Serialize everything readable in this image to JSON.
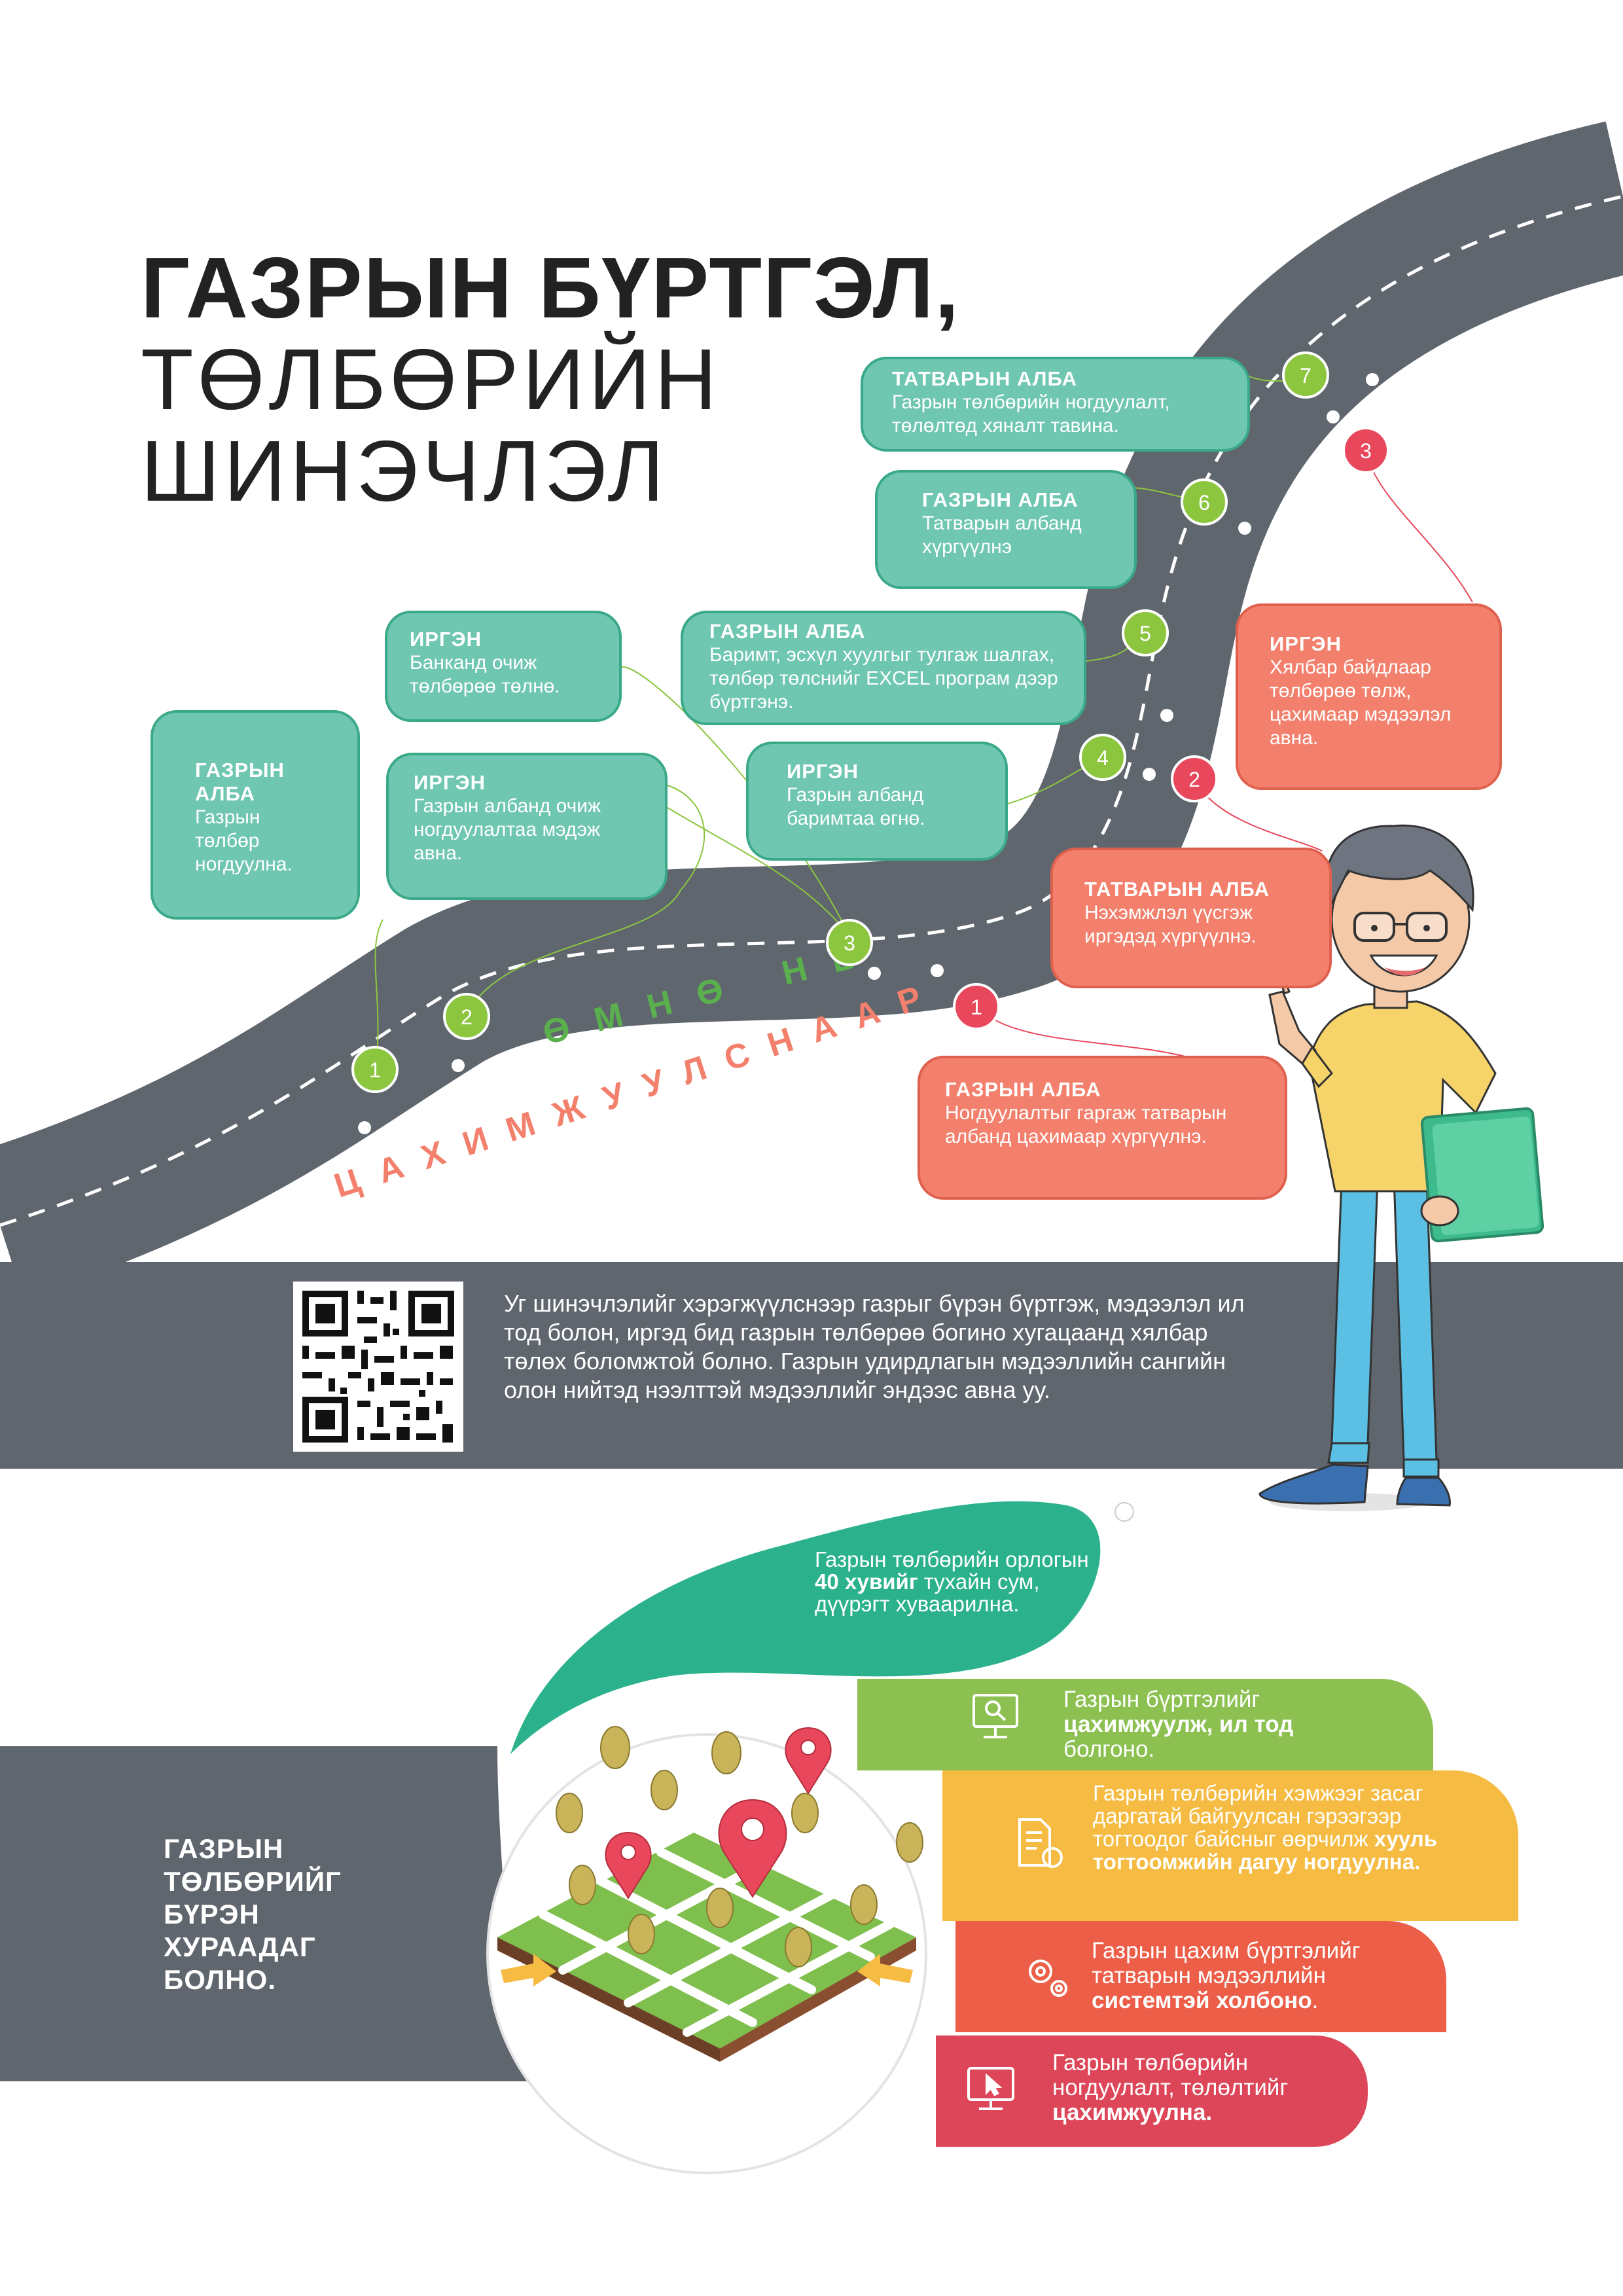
{
  "title": {
    "line1": "ГАЗРЫН БҮРТГЭЛ,",
    "line2": "ТӨЛБӨРИЙН",
    "line3": "ШИНЭЧЛЭЛ"
  },
  "road": {
    "before_label": "ӨМНӨ НЬ",
    "after_label": "ЦАХИМЖУУЛСНААР"
  },
  "before_steps": [
    {
      "num": "1",
      "heading": "ГАЗРЫН АЛБА",
      "text": "Газрын төлбөр ногдуулна."
    },
    {
      "num": "2",
      "heading": "ИРГЭН",
      "text": "Газрын албанд очиж ногдуулалтаа мэдэж авна."
    },
    {
      "num": "3",
      "heading": "ИРГЭН",
      "text": "Банканд очиж төлбөрөө төлнө."
    },
    {
      "num": "4",
      "heading": "ИРГЭН",
      "text": "Газрын албанд баримтаа өгнө."
    },
    {
      "num": "5",
      "heading": "ГАЗРЫН АЛБА",
      "text": "Баримт, эсхүл хуулгыг тулгаж шалгах, төлбөр төлснийг EXCEL програм дээр бүртгэнэ."
    },
    {
      "num": "6",
      "heading": "ГАЗРЫН АЛБА",
      "text": "Татварын албанд хүргүүлнэ"
    },
    {
      "num": "7",
      "heading": "ТАТВАРЫН АЛБА",
      "text": "Газрын төлбөрийн ногдуулалт, төлөлтөд хяналт тавина."
    }
  ],
  "after_steps": [
    {
      "num": "1",
      "heading": "ГАЗРЫН АЛБА",
      "text": "Ногдуулалтыг гаргаж татварын албанд цахимаар хүргүүлнэ."
    },
    {
      "num": "2",
      "heading": "ТАТВАРЫН АЛБА",
      "text": "Нэхэмжлэл үүсгэж иргэдэд хүргүүлнэ."
    },
    {
      "num": "3",
      "heading": "ИРГЭН",
      "text": "Хялбар байдлаар төлбөрөө төлж, цахимаар мэдээлэл авна."
    }
  ],
  "info_band": {
    "text": "Уг шинэчлэлийг хэрэгжүүлснээр газрыг бүрэн бүртгэж, мэдээлэл ил тод болон, иргэд бид газрын төлбөрөө богино хугацаанд хялбар төлөх боломжтой болно. Газрын удирдлагын мэдээллийн сангийн олон нийтэд нээлттэй мэдээллийг эндээс авна уу."
  },
  "bubble": {
    "pre": "Газрын төлбөрийн орлогын ",
    "bold": "40 хувийг",
    "post": " тухайн сум, дүүрэгт хуваарилна."
  },
  "bottom_title": "ГАЗРЫН ТӨЛБӨРИЙГ БҮРЭН ХУРААДАГ БОЛНО.",
  "benefits": [
    {
      "icon": "monitor-search-icon",
      "color": "#8cc152",
      "pre": "Газрын бүртгэлийг ",
      "bold": "цахимжуулж, ил тод",
      "post": " болгоно."
    },
    {
      "icon": "document-badge-icon",
      "color": "#f6bb42",
      "pre": "Газрын төлбөрийн хэмжээг засаг даргатай байгуулсан гэрээгээр тогтоодог байсныг өөрчилж ",
      "bold": "хууль тогтоомжийн дагуу ногдуулна.",
      "post": ""
    },
    {
      "icon": "gears-icon",
      "color": "#ec5e48",
      "pre": "Газрын цахим бүртгэлийг татварын мэдээллийн ",
      "bold": "системтэй холбоно",
      "post": "."
    },
    {
      "icon": "monitor-cursor-icon",
      "color": "#dd4658",
      "pre": "Газрын төлбөрийн ногдуулалт, төлөлтийг ",
      "bold": "цахимжуулна.",
      "post": ""
    }
  ],
  "colors": {
    "road": "#5f666e",
    "teal": "#6fc6b1",
    "teal_border": "#3aa988",
    "coral": "#f2806c",
    "green_marker": "#8cc63f",
    "red_marker": "#e8475c",
    "before_label": "#5ab04d",
    "after_label": "#f2806c",
    "bubble": "#2bb28c",
    "band": "#5f666e"
  }
}
